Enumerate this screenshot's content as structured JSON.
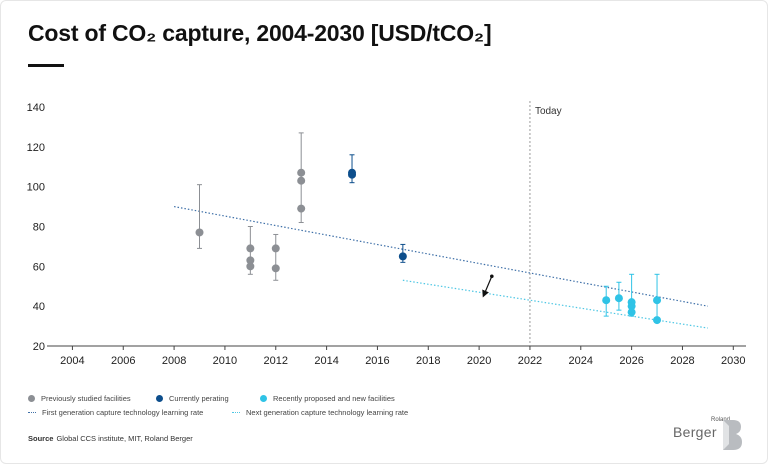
{
  "title": "Cost of CO₂ capture, 2004-2030 [USD/tCO₂]",
  "colors": {
    "previous": "#8c8f94",
    "current": "#0d4e8c",
    "new": "#2fc3e6",
    "first_line": "#3f70a8",
    "next_line": "#4fc7e4",
    "arrow": "#111111",
    "today": "#9a9a9a",
    "axis": "#444444"
  },
  "chart_data": {
    "type": "scatter",
    "xlim": [
      2003,
      2030.5
    ],
    "ylim": [
      20,
      140
    ],
    "xticks": [
      2004,
      2006,
      2008,
      2010,
      2012,
      2014,
      2016,
      2018,
      2020,
      2022,
      2024,
      2026,
      2028,
      2030
    ],
    "yticks": [
      20,
      40,
      60,
      80,
      100,
      120,
      140
    ],
    "xtick_labels": [
      "2004",
      "2006",
      "2008",
      "2010",
      "2012",
      "2014",
      "2016",
      "2018",
      "2020",
      "2022",
      "2024",
      "2026",
      "2028",
      "2030"
    ],
    "ytick_labels": [
      "20",
      "40",
      "60",
      "80",
      "100",
      "120",
      "140"
    ],
    "grid": false,
    "annotation": {
      "label": "Today",
      "x": 2022
    },
    "series": [
      {
        "name": "Previously studied facilities",
        "color_key": "previous",
        "points": [
          {
            "x": 2009,
            "y": 77
          },
          {
            "x": 2011,
            "y": 69
          },
          {
            "x": 2011,
            "y": 63
          },
          {
            "x": 2011,
            "y": 60
          },
          {
            "x": 2012,
            "y": 69
          },
          {
            "x": 2012,
            "y": 59
          },
          {
            "x": 2013,
            "y": 107
          },
          {
            "x": 2013,
            "y": 103
          },
          {
            "x": 2013,
            "y": 89
          }
        ],
        "error_bars": [
          {
            "x": 2009,
            "low": 69,
            "high": 101
          },
          {
            "x": 2011,
            "low": 56,
            "high": 80
          },
          {
            "x": 2012,
            "low": 53,
            "high": 76
          },
          {
            "x": 2013,
            "low": 82,
            "high": 127
          }
        ]
      },
      {
        "name": "Currently perating",
        "color_key": "current",
        "points": [
          {
            "x": 2015,
            "y": 107
          },
          {
            "x": 2015,
            "y": 106
          },
          {
            "x": 2017,
            "y": 65
          }
        ],
        "error_bars": [
          {
            "x": 2015,
            "low": 102,
            "high": 116
          },
          {
            "x": 2017,
            "low": 62,
            "high": 71
          }
        ]
      },
      {
        "name": "Recently proposed and new facilities",
        "color_key": "new",
        "points": [
          {
            "x": 2025,
            "y": 43
          },
          {
            "x": 2025.5,
            "y": 44
          },
          {
            "x": 2026,
            "y": 42
          },
          {
            "x": 2026,
            "y": 40
          },
          {
            "x": 2026,
            "y": 37
          },
          {
            "x": 2027,
            "y": 43
          },
          {
            "x": 2027,
            "y": 33
          }
        ],
        "error_bars": [
          {
            "x": 2025,
            "low": 35,
            "high": 50
          },
          {
            "x": 2025.5,
            "low": 38,
            "high": 52
          },
          {
            "x": 2026,
            "low": 35,
            "high": 56
          },
          {
            "x": 2027,
            "low": 33,
            "high": 56
          }
        ]
      }
    ],
    "trend_lines": [
      {
        "name": "First generation capture technology learning rate",
        "color_key": "first_line",
        "x": [
          2008,
          2029
        ],
        "y": [
          90,
          40
        ]
      },
      {
        "name": "Next generation capture technology learning rate",
        "color_key": "next_line",
        "x": [
          2017,
          2029
        ],
        "y": [
          53,
          29
        ]
      }
    ],
    "arrow": {
      "x_start": 2020.5,
      "y_start": 55,
      "x_end": 2020.2,
      "y_end": 45
    }
  },
  "legend": {
    "previous": "Previously studied facilities",
    "current": "Currently perating",
    "new": "Recently proposed and new facilities",
    "first_line": "First generation capture technology learning rate",
    "next_line": "Next generation capture technology learning rate"
  },
  "source": {
    "label": "Source",
    "text": "Global CCS institute, MIT, Roland Berger"
  },
  "brand": {
    "small": "Roland",
    "big": "Berger",
    "logo_icon": "roland-berger-logo-icon"
  }
}
